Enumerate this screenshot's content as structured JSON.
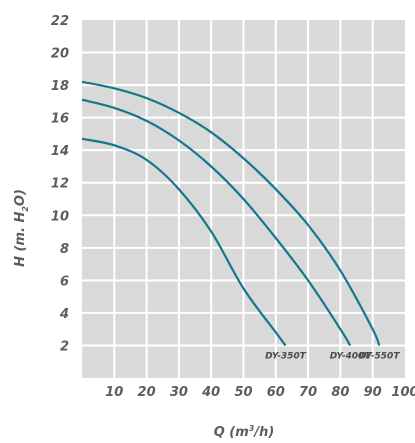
{
  "chart_data": {
    "type": "line",
    "title": "",
    "xlabel_main": "Q (m",
    "xlabel_sup": "3",
    "xlabel_tail": "/h)",
    "ylabel_main": "H (m. H",
    "ylabel_sub": "2",
    "ylabel_tail": "O)",
    "xlim": [
      0,
      100
    ],
    "ylim": [
      0,
      22
    ],
    "x_ticks": [
      "10",
      "20",
      "30",
      "40",
      "50",
      "60",
      "70",
      "80",
      "90",
      "100"
    ],
    "y_ticks": [
      "2",
      "4",
      "6",
      "8",
      "10",
      "12",
      "14",
      "16",
      "18",
      "20",
      "22"
    ],
    "grid": true,
    "colors": {
      "plot_bg": "#d9d9d9",
      "grid": "#ffffff",
      "line": "#15778c"
    },
    "series": [
      {
        "name": "DY-350T",
        "x": [
          0,
          10,
          20,
          30,
          40,
          50,
          60,
          63
        ],
        "y": [
          14.7,
          14.3,
          13.4,
          11.6,
          9.0,
          5.5,
          2.8,
          2.0
        ]
      },
      {
        "name": "DY-400T",
        "x": [
          0,
          10,
          20,
          30,
          40,
          50,
          60,
          70,
          80,
          83
        ],
        "y": [
          17.1,
          16.6,
          15.8,
          14.6,
          13.0,
          11.0,
          8.6,
          6.0,
          3.0,
          2.0
        ]
      },
      {
        "name": "DY-550T",
        "x": [
          0,
          10,
          20,
          30,
          40,
          50,
          60,
          70,
          80,
          90,
          92
        ],
        "y": [
          18.2,
          17.8,
          17.2,
          16.3,
          15.1,
          13.5,
          11.6,
          9.4,
          6.6,
          3.0,
          2.0
        ]
      }
    ]
  }
}
